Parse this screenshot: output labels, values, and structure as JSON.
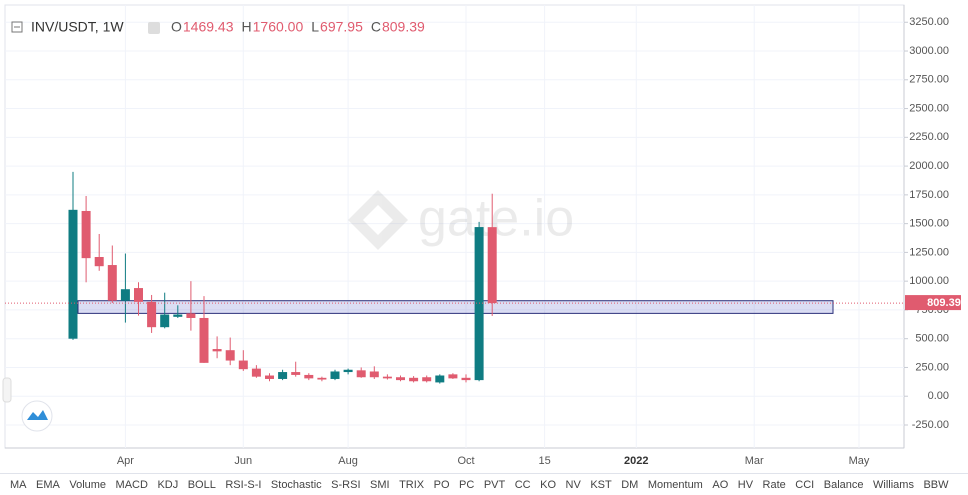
{
  "chart_data": {
    "type": "candlestick",
    "header": {
      "title": "INV/USDT, 1W",
      "fields": [
        {
          "label": "O",
          "value": "1469.43"
        },
        {
          "label": "H",
          "value": "1760.00"
        },
        {
          "label": "L",
          "value": "697.95"
        },
        {
          "label": "C",
          "value": "809.39"
        }
      ]
    },
    "watermark": "gate.io",
    "categories": [
      null,
      null,
      null,
      null,
      "Apr",
      null,
      null,
      null,
      null,
      null,
      null,
      null,
      null,
      "Jun",
      null,
      null,
      null,
      null,
      null,
      null,
      null,
      "Aug",
      null,
      null,
      null,
      null,
      null,
      null,
      null,
      null,
      "Oct",
      null,
      null,
      null,
      null,
      null,
      "15",
      null,
      null,
      null,
      null,
      null,
      null,
      "2022",
      null,
      null,
      null,
      null,
      null,
      null,
      null,
      null,
      "Mar",
      null,
      null,
      null,
      null,
      null,
      null,
      null,
      "May",
      null,
      null,
      null
    ],
    "open": [
      500,
      1610,
      1210,
      1140,
      830,
      940,
      820,
      600,
      690,
      720,
      680,
      410,
      400,
      310,
      240,
      180,
      150,
      210,
      185,
      160,
      150,
      210,
      225,
      215,
      170,
      165,
      160,
      165,
      120,
      190,
      160,
      140,
      1469.43,
      null,
      null,
      null,
      null,
      null,
      null,
      null,
      null,
      null,
      null,
      null,
      null,
      null,
      null,
      null,
      null,
      null,
      null,
      null,
      null,
      null,
      null,
      null,
      null,
      null,
      null,
      null,
      null,
      null,
      null,
      null
    ],
    "high": [
      1950,
      1740,
      1410,
      1310,
      1240,
      990,
      880,
      900,
      790,
      1000,
      870,
      520,
      510,
      400,
      270,
      200,
      230,
      300,
      200,
      170,
      230,
      240,
      250,
      260,
      190,
      180,
      175,
      180,
      190,
      200,
      190,
      1515,
      1760,
      null,
      null,
      null,
      null,
      null,
      null,
      null,
      null,
      null,
      null,
      null,
      null,
      null,
      null,
      null,
      null,
      null,
      null,
      null,
      null,
      null,
      null,
      null,
      null,
      null,
      null,
      null,
      null,
      null,
      null,
      null
    ],
    "low": [
      490,
      990,
      1090,
      810,
      640,
      700,
      550,
      590,
      680,
      570,
      290,
      330,
      270,
      220,
      160,
      130,
      140,
      170,
      140,
      130,
      140,
      190,
      160,
      150,
      145,
      130,
      120,
      120,
      110,
      150,
      120,
      130,
      697.95,
      null,
      null,
      null,
      null,
      null,
      null,
      null,
      null,
      null,
      null,
      null,
      null,
      null,
      null,
      null,
      null,
      null,
      null,
      null,
      null,
      null,
      null,
      null,
      null,
      null,
      null,
      null,
      null,
      null,
      null,
      null
    ],
    "close": [
      1620,
      1200,
      1130,
      830,
      930,
      820,
      600,
      710,
      710,
      680,
      290,
      390,
      310,
      235,
      170,
      150,
      210,
      185,
      155,
      145,
      215,
      230,
      165,
      165,
      155,
      140,
      130,
      130,
      180,
      155,
      140,
      1470,
      809.39,
      null,
      null,
      null,
      null,
      null,
      null,
      null,
      null,
      null,
      null,
      null,
      null,
      null,
      null,
      null,
      null,
      null,
      null,
      null,
      null,
      null,
      null,
      null,
      null,
      null,
      null,
      null,
      null,
      null,
      null,
      null
    ],
    "up_color": "#0f7c82",
    "down_color": "#e05b6f",
    "zone": {
      "low": 720,
      "high": 830
    },
    "ylim": [
      -450,
      3400
    ],
    "yticks": [
      {
        "value": -250,
        "label": "-250.00"
      },
      {
        "value": 0,
        "label": "0.00"
      },
      {
        "value": 250,
        "label": "250.00"
      },
      {
        "value": 500,
        "label": "500.00"
      },
      {
        "value": 750,
        "label": "750.00"
      },
      {
        "value": 1000,
        "label": "1000.00"
      },
      {
        "value": 1250,
        "label": "1250.00"
      },
      {
        "value": 1500,
        "label": "1500.00"
      },
      {
        "value": 1750,
        "label": "1750.00"
      },
      {
        "value": 2000,
        "label": "2000.00"
      },
      {
        "value": 2250,
        "label": "2250.00"
      },
      {
        "value": 2500,
        "label": "2500.00"
      },
      {
        "value": 2750,
        "label": "2750.00"
      },
      {
        "value": 3000,
        "label": "3000.00"
      },
      {
        "value": 3250,
        "label": "3250.00"
      }
    ],
    "grid": true,
    "toolbar": [
      "MA",
      "EMA",
      "Volume",
      "MACD",
      "KDJ",
      "BOLL",
      "RSI-S-I",
      "Stochastic",
      "S-RSI",
      "SMI",
      "TRIX",
      "PO",
      "PC",
      "PVT",
      "CC",
      "KO",
      "NV",
      "KST",
      "DM",
      "Momentum",
      "AO",
      "HV",
      "Rate",
      "CCI",
      "Balance",
      "Williams",
      "BBW"
    ]
  }
}
